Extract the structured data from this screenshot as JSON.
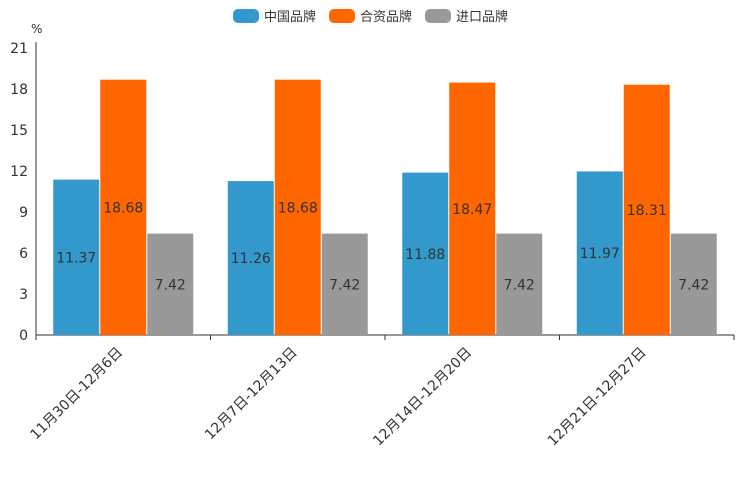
{
  "chart_data": {
    "type": "bar",
    "unit": "%",
    "categories": [
      "11月30日-12月6日",
      "12月7日-12月13日",
      "12月14日-12月20日",
      "12月21日-12月27日"
    ],
    "series": [
      {
        "name": "中国品牌",
        "color": "#3399cc",
        "values": [
          11.37,
          11.26,
          11.88,
          11.97
        ]
      },
      {
        "name": "合资品牌",
        "color": "#ff6600",
        "values": [
          18.68,
          18.68,
          18.47,
          18.31
        ]
      },
      {
        "name": "进口品牌",
        "color": "#999999",
        "values": [
          7.42,
          7.42,
          7.42,
          7.42
        ]
      }
    ],
    "yticks": [
      0,
      3,
      6,
      9,
      12,
      15,
      18,
      21
    ],
    "ylim": [
      0,
      21
    ],
    "legend_position": "top-center",
    "grid": false
  }
}
